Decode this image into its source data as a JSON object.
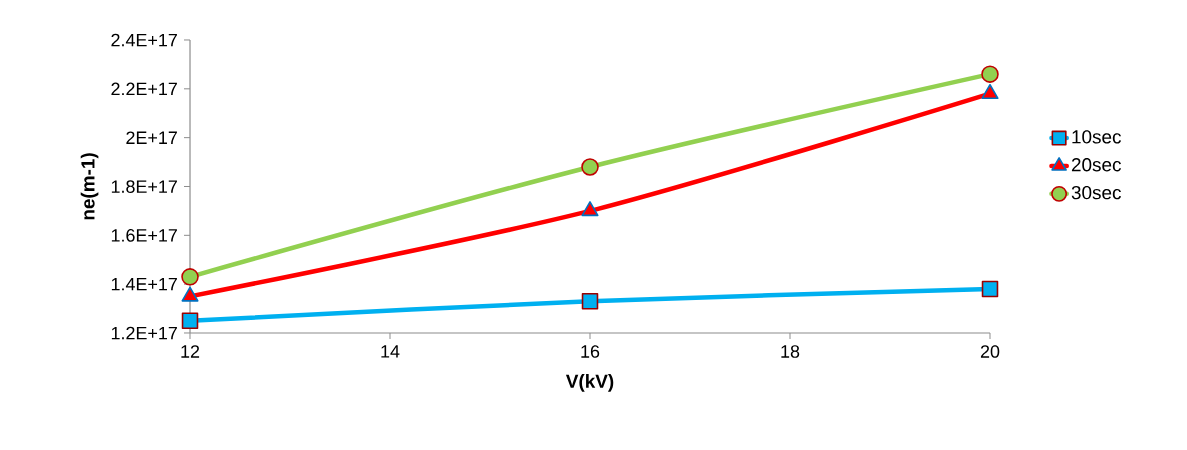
{
  "chart_data": {
    "type": "line",
    "xlabel": "V(kV)",
    "ylabel": "ne(m-1)",
    "x": [
      12,
      16,
      20
    ],
    "series": [
      {
        "name": "10sec",
        "color": "#00b0f0",
        "marker": "square",
        "values": [
          1.25e+17,
          1.33e+17,
          1.38e+17
        ]
      },
      {
        "name": "20sec",
        "color": "#ff0000",
        "marker": "triangle",
        "values": [
          1.35e+17,
          1.7e+17,
          2.18e+17
        ]
      },
      {
        "name": "30sec",
        "color": "#92d050",
        "marker": "circle",
        "values": [
          1.43e+17,
          1.88e+17,
          2.26e+17
        ]
      }
    ],
    "xlim": [
      12,
      20
    ],
    "xticks": [
      12,
      14,
      16,
      18,
      20
    ],
    "ylim": [
      1.2e+17,
      2.4e+17
    ],
    "yticks": [
      {
        "value": 1.2e+17,
        "label": "1.2E+17"
      },
      {
        "value": 1.4e+17,
        "label": "1.4E+17"
      },
      {
        "value": 1.6e+17,
        "label": "1.6E+17"
      },
      {
        "value": 1.8e+17,
        "label": "1.8E+17"
      },
      {
        "value": 2e+17,
        "label": "2E+17"
      },
      {
        "value": 2.2e+17,
        "label": "2.2E+17"
      },
      {
        "value": 2.4e+17,
        "label": "2.4E+17"
      }
    ],
    "grid": false,
    "legend": "right",
    "line_style": "solid"
  }
}
